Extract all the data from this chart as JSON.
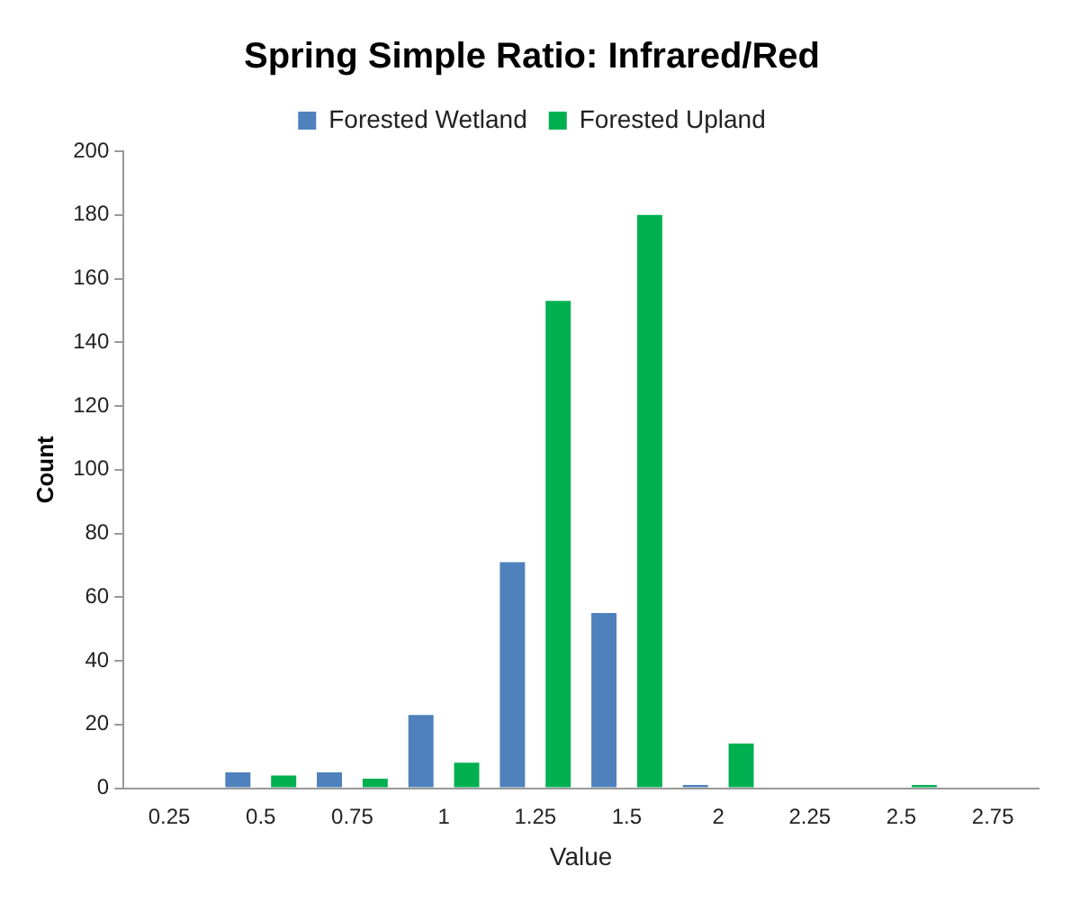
{
  "chart_data": {
    "type": "bar",
    "title": "Spring Simple Ratio: Infrared/Red",
    "xlabel": "Value",
    "ylabel": "Count",
    "categories": [
      "0.25",
      "0.5",
      "0.75",
      "1",
      "1.25",
      "1.5",
      "2",
      "2.25",
      "2.5",
      "2.75"
    ],
    "series": [
      {
        "name": "Forested Wetland",
        "color": "#4f81bd",
        "values": [
          0,
          5,
          5,
          23,
          71,
          55,
          1,
          0,
          0,
          0
        ]
      },
      {
        "name": "Forested Upland",
        "color": "#00b050",
        "values": [
          0,
          4,
          3,
          8,
          153,
          180,
          14,
          0,
          1,
          0
        ]
      }
    ],
    "ylim": [
      0,
      200
    ],
    "yticks": [
      0,
      20,
      40,
      60,
      80,
      100,
      120,
      140,
      160,
      180,
      200
    ],
    "grid": false,
    "legend": "top"
  }
}
